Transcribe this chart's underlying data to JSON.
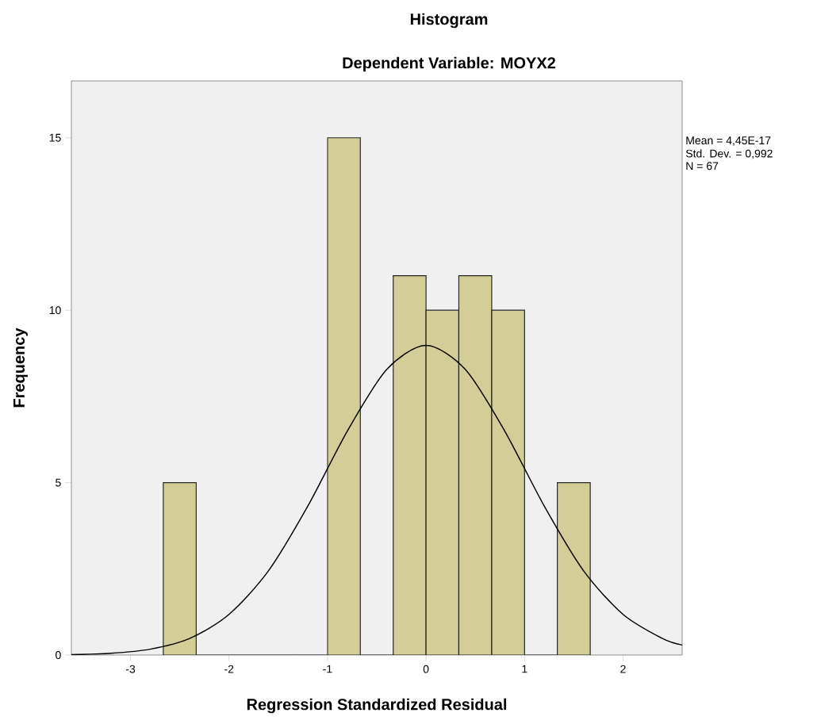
{
  "chart_data": {
    "type": "histogram",
    "title": "Histogram",
    "subtitle": "Dependent Variable: MOYX2",
    "xlabel": "Regression Standardized Residual",
    "ylabel": "Frequency",
    "series": [
      {
        "color": "#d3ce98",
        "bins": [
          -2.667,
          -2.333,
          -2.0,
          -1.667,
          -1.333,
          -1.0,
          -0.667,
          -0.333,
          0.0,
          0.333,
          0.667,
          1.0,
          1.333,
          1.667
        ],
        "values": [
          5,
          0,
          0,
          0,
          0,
          15,
          0,
          11,
          10,
          11,
          10,
          0,
          5
        ]
      },
      {
        "type": "line",
        "color": "#000000",
        "x": [
          -3.6,
          -3.2,
          -2.8,
          -2.4,
          -2.0,
          -1.6,
          -1.2,
          -0.8,
          -0.4,
          0.0,
          0.4,
          0.8,
          1.2,
          1.6,
          2.0,
          2.4,
          2.6
        ],
        "values": [
          0.01,
          0.05,
          0.17,
          0.48,
          1.18,
          2.44,
          4.32,
          6.49,
          8.28,
          8.98,
          8.28,
          6.49,
          4.32,
          2.44,
          1.18,
          0.48,
          0.29
        ]
      }
    ],
    "xlim": [
      -3.6,
      2.6
    ],
    "ylim": [
      0,
      16.65
    ],
    "xticks": [
      -3,
      -2,
      -1,
      0,
      1,
      2
    ],
    "yticks": [
      0,
      5,
      10,
      15
    ],
    "grid": false,
    "annotations": [
      "Mean = 4,45E-17",
      "Std. Dev. = 0,992",
      "N = 67"
    ]
  }
}
